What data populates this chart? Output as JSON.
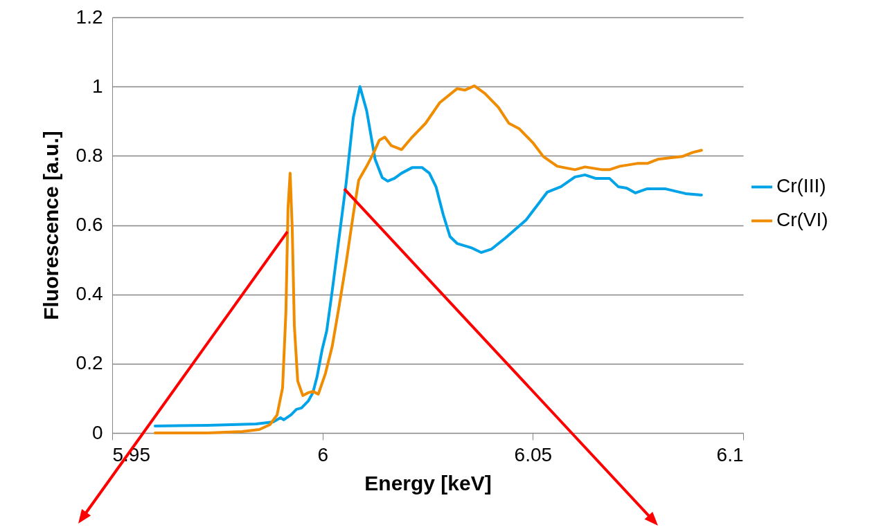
{
  "chart_data": {
    "type": "line",
    "xlabel": "Energy [keV]",
    "ylabel": "Fluorescence [a.u.]",
    "xlim": [
      5.95,
      6.1
    ],
    "xticks": [
      5.95,
      6,
      6.05,
      6.1
    ],
    "ylim": [
      0,
      1.2
    ],
    "yticks": [
      0,
      0.2,
      0.4,
      0.6,
      0.8,
      1,
      1.2
    ],
    "grid": "y",
    "legend": "right",
    "marker": "none",
    "line_style": "solid",
    "series": [
      {
        "name": "Cr(III)",
        "color": "#00a3e8",
        "x": [
          5.9602,
          5.9727,
          5.9842,
          5.9883,
          5.99,
          5.9908,
          5.9925,
          5.9938,
          5.995,
          5.9966,
          5.9977,
          5.9987,
          5.9999,
          6.001,
          6.0023,
          6.004,
          6.0056,
          6.0073,
          6.0089,
          6.0105,
          6.0125,
          6.0142,
          6.0155,
          6.0171,
          6.0188,
          6.0213,
          6.0237,
          6.0254,
          6.027,
          6.0287,
          6.0303,
          6.032,
          6.0353,
          6.0377,
          6.0402,
          6.0435,
          6.0484,
          6.0534,
          6.0567,
          6.06,
          6.0624,
          6.0649,
          6.0682,
          6.0703,
          6.0723,
          6.0744,
          6.0772,
          6.0814,
          6.0863,
          6.0901
        ],
        "values": [
          0.02,
          0.022,
          0.026,
          0.032,
          0.044,
          0.038,
          0.052,
          0.068,
          0.072,
          0.092,
          0.116,
          0.162,
          0.24,
          0.295,
          0.41,
          0.57,
          0.72,
          0.91,
          1.0,
          0.93,
          0.79,
          0.737,
          0.727,
          0.735,
          0.75,
          0.766,
          0.766,
          0.75,
          0.71,
          0.63,
          0.567,
          0.547,
          0.535,
          0.521,
          0.531,
          0.563,
          0.615,
          0.695,
          0.711,
          0.739,
          0.745,
          0.735,
          0.735,
          0.711,
          0.707,
          0.693,
          0.705,
          0.705,
          0.691,
          0.687
        ]
      },
      {
        "name": "Cr(VI)",
        "color": "#f08c00",
        "x": [
          5.9602,
          5.9727,
          5.9809,
          5.985,
          5.9875,
          5.9892,
          5.9905,
          5.9913,
          5.9918,
          5.9923,
          5.9928,
          5.9933,
          5.9941,
          5.9953,
          5.9966,
          5.9977,
          5.999,
          6.0007,
          6.0023,
          6.004,
          6.0056,
          6.0073,
          6.0086,
          6.0105,
          6.0122,
          6.0135,
          6.0148,
          6.0163,
          6.0188,
          6.0213,
          6.0245,
          6.0279,
          6.032,
          6.0339,
          6.0361,
          6.0386,
          6.0418,
          6.0443,
          6.0468,
          6.05,
          6.0525,
          6.0558,
          6.06,
          6.0624,
          6.0665,
          6.0682,
          6.0707,
          6.0748,
          6.0772,
          6.0797,
          6.0855,
          6.088,
          6.0901
        ],
        "values": [
          0,
          0,
          0.004,
          0.01,
          0.024,
          0.052,
          0.13,
          0.35,
          0.65,
          0.75,
          0.59,
          0.31,
          0.15,
          0.108,
          0.116,
          0.12,
          0.112,
          0.172,
          0.25,
          0.37,
          0.49,
          0.63,
          0.73,
          0.77,
          0.81,
          0.845,
          0.854,
          0.83,
          0.818,
          0.854,
          0.894,
          0.954,
          0.994,
          0.99,
          1.002,
          0.98,
          0.94,
          0.894,
          0.878,
          0.838,
          0.798,
          0.77,
          0.76,
          0.768,
          0.76,
          0.76,
          0.77,
          0.778,
          0.778,
          0.79,
          0.798,
          0.81,
          0.816
        ]
      }
    ]
  }
}
